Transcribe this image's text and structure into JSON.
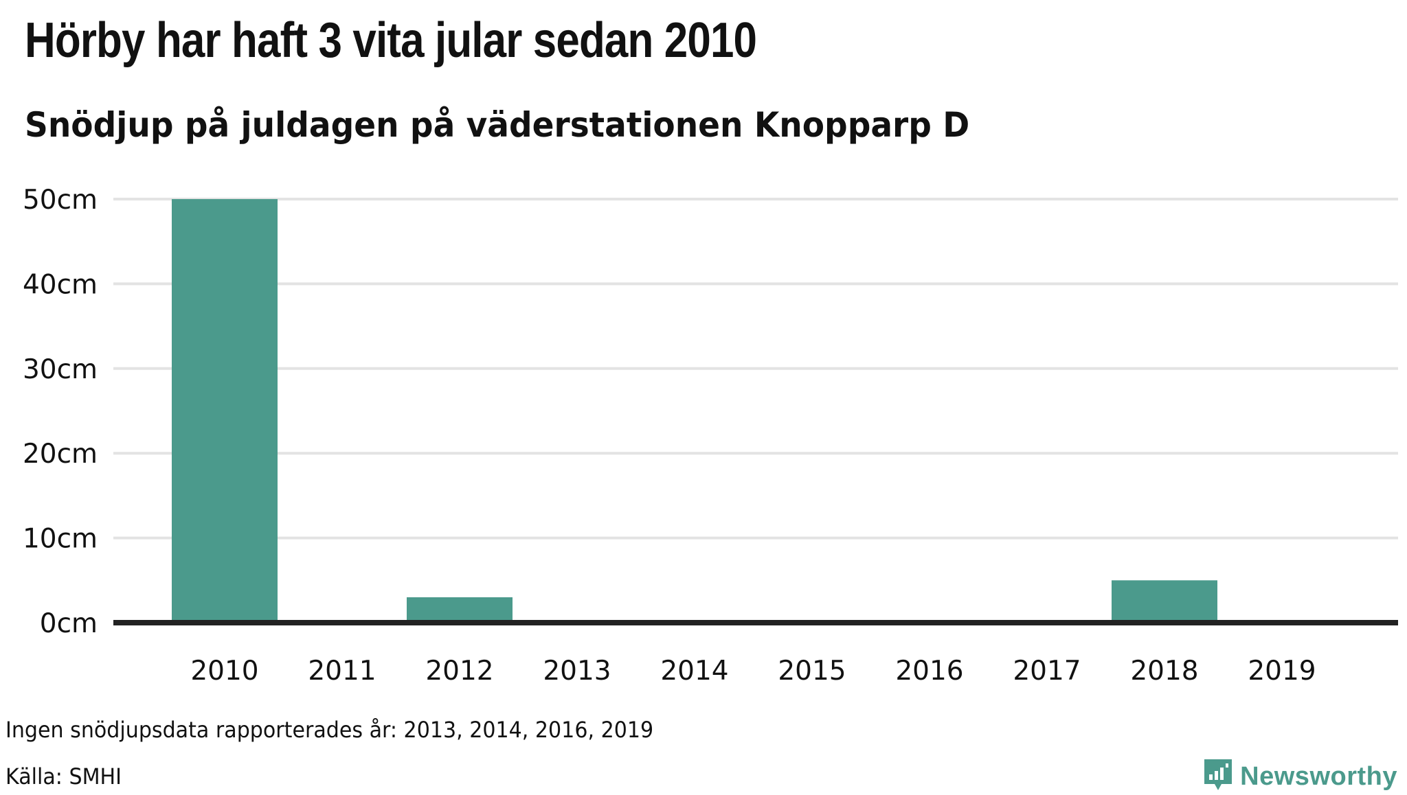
{
  "title": "Hörby har haft 3 vita jular sedan 2010",
  "subtitle": "Snödjup på juldagen på väderstationen Knopparp D",
  "note": "Ingen snödjupsdata rapporterades år: 2013, 2014, 2016, 2019",
  "source": "Källa: SMHI",
  "brand": {
    "name": "Newsworthy",
    "icon": "newsworthy-logo-icon"
  },
  "colors": {
    "bar": "#4b9a8c",
    "grid": "#e3e3e3",
    "baseline": "#222222",
    "brand": "#4b9a8c"
  },
  "chart_data": {
    "type": "bar",
    "categories": [
      "2010",
      "2011",
      "2012",
      "2013",
      "2014",
      "2015",
      "2016",
      "2017",
      "2018",
      "2019"
    ],
    "values": [
      50,
      0,
      3,
      null,
      null,
      0,
      null,
      0,
      5,
      null
    ],
    "unit": "cm",
    "yticks": [
      "0cm",
      "10cm",
      "20cm",
      "30cm",
      "40cm",
      "50cm"
    ],
    "ylim": [
      0,
      50
    ],
    "grid": true
  }
}
